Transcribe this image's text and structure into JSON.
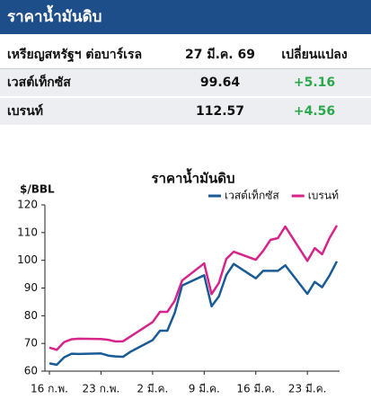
{
  "header": {
    "title": "ราคาน้ำมันดิบ"
  },
  "table": {
    "columns": [
      "เหรียญสหรัฐฯ ต่อบาร์เรล",
      "27 มี.ค. 69",
      "เปลี่ยนแปลง"
    ],
    "rows": [
      [
        "เวสต์เท็กซัส",
        "99.64",
        "+5.16"
      ],
      [
        "เบรนท์",
        "112.57",
        "+4.56"
      ]
    ]
  },
  "chart_data": {
    "type": "line",
    "title": "ราคาน้ำมันดิบ",
    "y_label": "$/BBL",
    "x": [
      0,
      1,
      2,
      3,
      4,
      7,
      8,
      9,
      10,
      11,
      14,
      15,
      16,
      17,
      18,
      21,
      22,
      23,
      24,
      25,
      28,
      29,
      30,
      31,
      32,
      35,
      36,
      37,
      38,
      39
    ],
    "xlim": [
      0,
      39
    ],
    "xticks": [
      {
        "value": 0,
        "label": "16 ก.พ."
      },
      {
        "value": 7,
        "label": "23 ก.พ."
      },
      {
        "value": 14,
        "label": "2 มี.ค."
      },
      {
        "value": 21,
        "label": "9 มี.ค."
      },
      {
        "value": 28,
        "label": "16 มี.ค."
      },
      {
        "value": 35,
        "label": "23 มี.ค."
      }
    ],
    "ylim": [
      60,
      120
    ],
    "yticks": [
      60,
      70,
      80,
      90,
      100,
      110,
      120
    ],
    "legend": "top-right",
    "series": [
      {
        "name": "เวสต์เท็กซัส",
        "color": "#1a5b96",
        "values": [
          62.8,
          62.3,
          65,
          66.3,
          66.2,
          66.4,
          65.6,
          65.3,
          65.2,
          67,
          71.2,
          74.6,
          74.6,
          81,
          90.9,
          94.6,
          83.4,
          87,
          94.7,
          98.7,
          93.5,
          96.2,
          96.2,
          96.2,
          98.2,
          87.9,
          92.2,
          90.3,
          94.5,
          99.64
        ]
      },
      {
        "name": "เบรนท์",
        "color": "#d6248a",
        "values": [
          68.5,
          67.7,
          70.5,
          71.5,
          71.7,
          71.6,
          71.3,
          70.7,
          70.8,
          72.5,
          77.7,
          81.4,
          81.4,
          85.4,
          92.7,
          98.9,
          87.8,
          91.9,
          100.5,
          103.1,
          100.2,
          103.4,
          107.4,
          108,
          112.2,
          99.8,
          104.4,
          102.2,
          108,
          112.57
        ]
      }
    ]
  }
}
